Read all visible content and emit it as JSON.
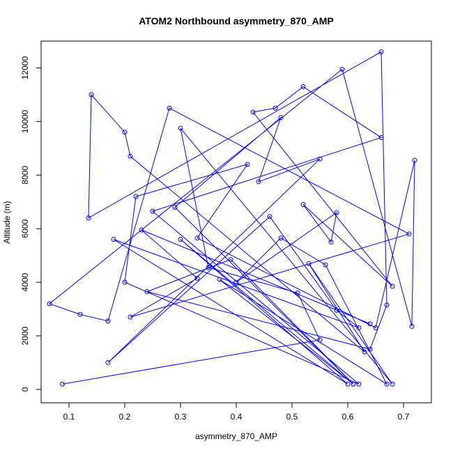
{
  "chart_data": {
    "type": "line",
    "title": "ATOM2 Northbound asymmetry_870_AMP",
    "xlabel": "asymmetry_870_AMP",
    "ylabel": "Altitude (m)",
    "xlim": [
      0.05,
      0.75
    ],
    "ylim": [
      -500,
      13000
    ],
    "x_ticks": [
      0.1,
      0.2,
      0.3,
      0.4,
      0.5,
      0.6,
      0.7
    ],
    "x_tick_labels": [
      "0.1",
      "0.2",
      "0.3",
      "0.4",
      "0.5",
      "0.6",
      "0.7"
    ],
    "y_ticks": [
      0,
      2000,
      4000,
      6000,
      8000,
      10000,
      12000
    ],
    "y_tick_labels": [
      "0",
      "2000",
      "4000",
      "6000",
      "8000",
      "10000",
      "12000"
    ],
    "grid": false,
    "series": [
      {
        "color": "#0000ff",
        "marker": "open-circle",
        "x": [
          0.088,
          0.55,
          0.51,
          0.35,
          0.3,
          0.68,
          0.53,
          0.63,
          0.21,
          0.2,
          0.14,
          0.135,
          0.66,
          0.67,
          0.64,
          0.24,
          0.39,
          0.61,
          0.29,
          0.48,
          0.44,
          0.55,
          0.17,
          0.46,
          0.58,
          0.62,
          0.18,
          0.6,
          0.3,
          0.61,
          0.37,
          0.67,
          0.56,
          0.48,
          0.4,
          0.58,
          0.57,
          0.52,
          0.68,
          0.43,
          0.47,
          0.52,
          0.66,
          0.25,
          0.62,
          0.2,
          0.22,
          0.42,
          0.33,
          0.65,
          0.72,
          0.715,
          0.59,
          0.065,
          0.12,
          0.17,
          0.28,
          0.71,
          0.21,
          0.33,
          0.23,
          0.64
        ],
        "y": [
          200,
          1850,
          3600,
          4550,
          9750,
          200,
          4700,
          1400,
          8700,
          9600,
          11000,
          6400,
          12600,
          3150,
          1500,
          3650,
          4850,
          200,
          6800,
          10150,
          7750,
          8600,
          1000,
          6450,
          2950,
          2300,
          5600,
          200,
          5600,
          200,
          4100,
          200,
          4650,
          5650,
          4000,
          6600,
          5500,
          6900,
          3850,
          10350,
          10500,
          11300,
          9400,
          6650,
          200,
          4000,
          7200,
          8400,
          5650,
          2300,
          8550,
          2350,
          11950,
          3200,
          2800,
          2550,
          10500,
          5800,
          2700,
          4150,
          5950,
          2450
        ]
      }
    ]
  }
}
